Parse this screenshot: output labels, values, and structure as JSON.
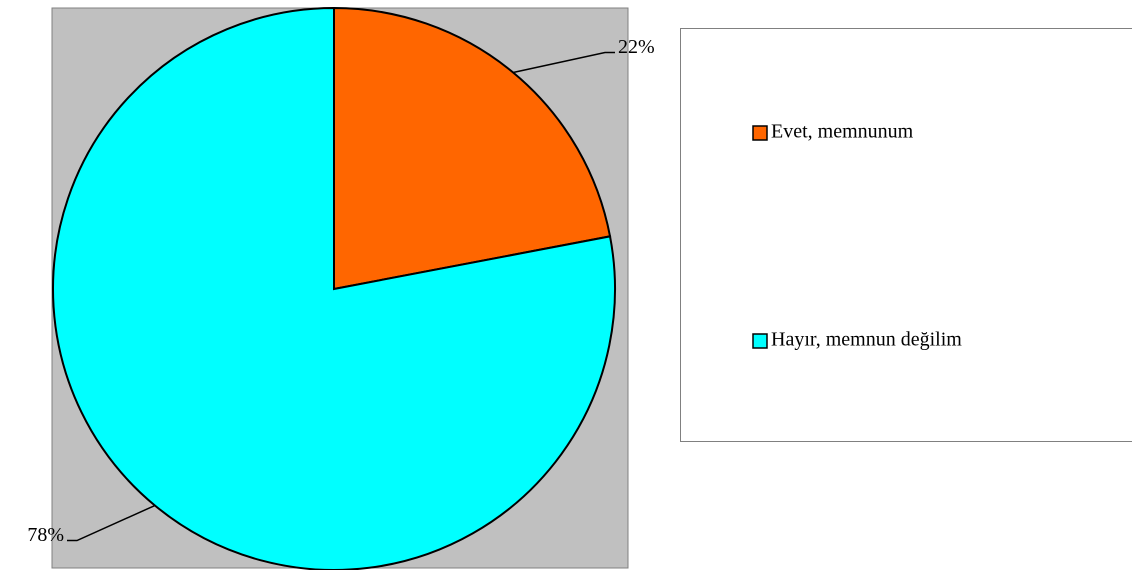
{
  "chart_data": {
    "type": "pie",
    "categories": [
      "Evet, memnunum",
      "Hayır, memnun değilim"
    ],
    "values": [
      22,
      78
    ],
    "value_labels": [
      "22%",
      "78%"
    ],
    "colors": [
      "#ff6600",
      "#00ffff"
    ],
    "legend": "right"
  }
}
